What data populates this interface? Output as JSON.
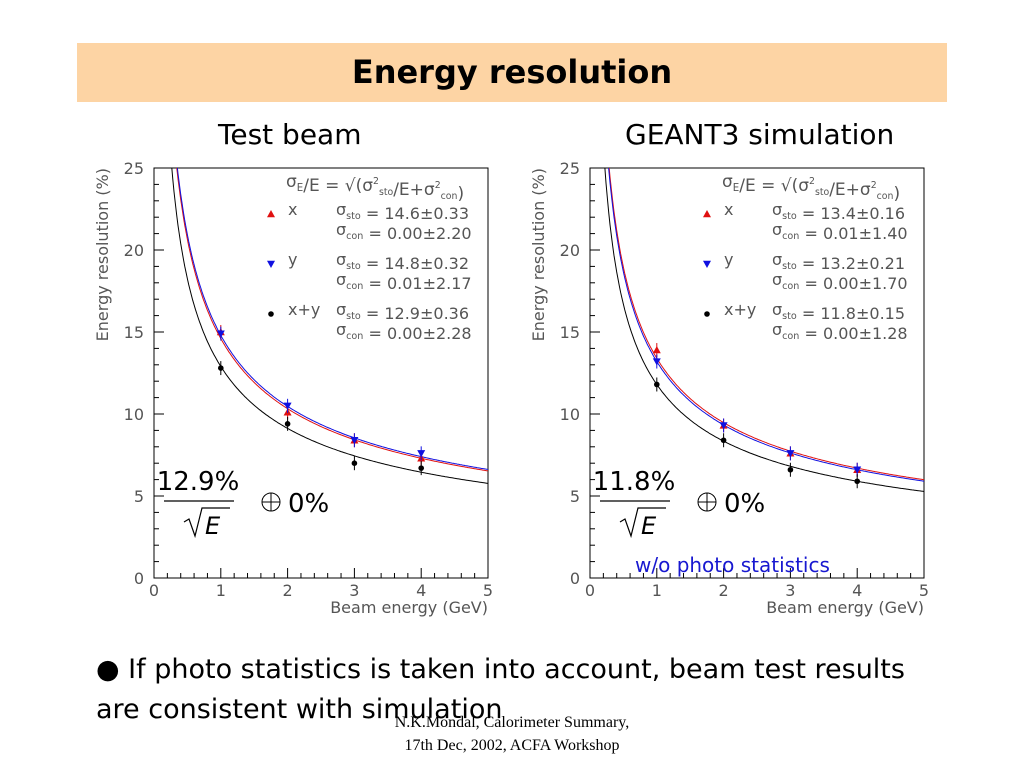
{
  "title": "Energy resolution",
  "left_label": "Test beam",
  "right_label": "GEANT3 simulation",
  "bullet": "If photo statistics is taken into account, beam test results are consistent with simulation",
  "note": "w/o photo statistics",
  "footer": [
    "N.K.Mondal, Calorimeter Summary,",
    "17th Dec, 2002, ACFA Workshop"
  ],
  "colors": {
    "title_bg": "#fdd4a4",
    "x": "#e01010",
    "y": "#1010e0",
    "xy": "#000000",
    "note": "#1818d0"
  },
  "chart_data": [
    {
      "type": "scatter",
      "xlabel": "Beam energy (GeV)",
      "ylabel": "Energy resolution (%)",
      "xlim": [
        0,
        5
      ],
      "ylim": [
        0,
        25
      ],
      "xticks": [
        "0",
        "1",
        "2",
        "3",
        "4",
        "5"
      ],
      "yticks": [
        "0",
        "5",
        "10",
        "15",
        "20",
        "25"
      ],
      "formula": "σ_E/E = √(σ²_sto/E+σ²_con)",
      "fit_label": {
        "num": "12.9%",
        "den": "E",
        "tail": "0%"
      },
      "series": [
        {
          "name": "x",
          "marker": "triangle-up",
          "color": "#e01010",
          "sto_label": "σ_sto = 14.6±0.33",
          "con_label": "σ_con = 0.00±2.20",
          "sto": 14.6,
          "con": 0.0,
          "points": [
            [
              1,
              15.0
            ],
            [
              2,
              10.1
            ],
            [
              3,
              8.4
            ],
            [
              4,
              7.3
            ]
          ]
        },
        {
          "name": "y",
          "marker": "triangle-down",
          "color": "#1010e0",
          "sto_label": "σ_sto = 14.8±0.32",
          "con_label": "σ_con = 0.01±2.17",
          "sto": 14.8,
          "con": 0.01,
          "points": [
            [
              1,
              14.9
            ],
            [
              2,
              10.5
            ],
            [
              3,
              8.4
            ],
            [
              4,
              7.6
            ]
          ]
        },
        {
          "name": "x+y",
          "marker": "circle",
          "color": "#000000",
          "sto_label": "σ_sto = 12.9±0.36",
          "con_label": "σ_con = 0.00±2.28",
          "sto": 12.9,
          "con": 0.0,
          "points": [
            [
              1,
              12.8
            ],
            [
              2,
              9.4
            ],
            [
              3,
              7.0
            ],
            [
              4,
              6.7
            ]
          ]
        }
      ]
    },
    {
      "type": "scatter",
      "xlabel": "Beam energy (GeV)",
      "ylabel": "Energy resolution (%)",
      "xlim": [
        0,
        5
      ],
      "ylim": [
        0,
        25
      ],
      "xticks": [
        "0",
        "1",
        "2",
        "3",
        "4",
        "5"
      ],
      "yticks": [
        "0",
        "5",
        "10",
        "15",
        "20",
        "25"
      ],
      "formula": "σ_E/E = √(σ²_sto/E+σ²_con)",
      "fit_label": {
        "num": "11.8%",
        "den": "E",
        "tail": "0%"
      },
      "series": [
        {
          "name": "x",
          "marker": "triangle-up",
          "color": "#e01010",
          "sto_label": "σ_sto = 13.4±0.16",
          "con_label": "σ_con = 0.01±1.40",
          "sto": 13.4,
          "con": 0.01,
          "points": [
            [
              1,
              13.9
            ],
            [
              2,
              9.3
            ],
            [
              3,
              7.6
            ],
            [
              4,
              6.6
            ]
          ]
        },
        {
          "name": "y",
          "marker": "triangle-down",
          "color": "#1010e0",
          "sto_label": "σ_sto = 13.2±0.21",
          "con_label": "σ_con = 0.00±1.70",
          "sto": 13.2,
          "con": 0.0,
          "points": [
            [
              1,
              13.2
            ],
            [
              2,
              9.3
            ],
            [
              3,
              7.6
            ],
            [
              4,
              6.6
            ]
          ]
        },
        {
          "name": "x+y",
          "marker": "circle",
          "color": "#000000",
          "sto_label": "σ_sto = 11.8±0.15",
          "con_label": "σ_con = 0.00±1.28",
          "sto": 11.8,
          "con": 0.0,
          "points": [
            [
              1,
              11.8
            ],
            [
              2,
              8.4
            ],
            [
              3,
              6.6
            ],
            [
              4,
              5.9
            ]
          ]
        }
      ]
    }
  ]
}
